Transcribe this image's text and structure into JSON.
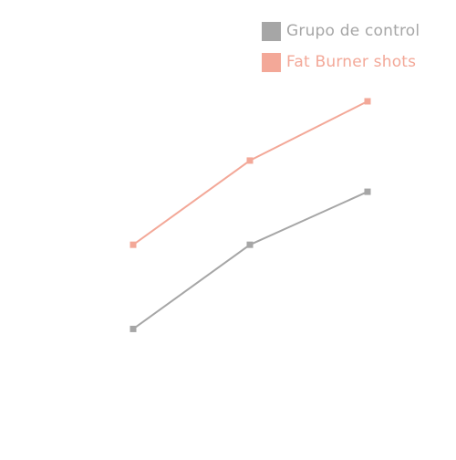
{
  "chart_data": {
    "type": "line",
    "x": [
      1,
      2,
      3
    ],
    "ylim": [
      0,
      12
    ],
    "grid": false,
    "legend_position": "top-right",
    "series": [
      {
        "name": "Grupo de control",
        "values": [
          3.5,
          6.2,
          7.9
        ],
        "color": "#a6a6a6"
      },
      {
        "name": "Fat Burner shots",
        "values": [
          6.2,
          8.9,
          10.8
        ],
        "color": "#f3a898"
      }
    ]
  }
}
